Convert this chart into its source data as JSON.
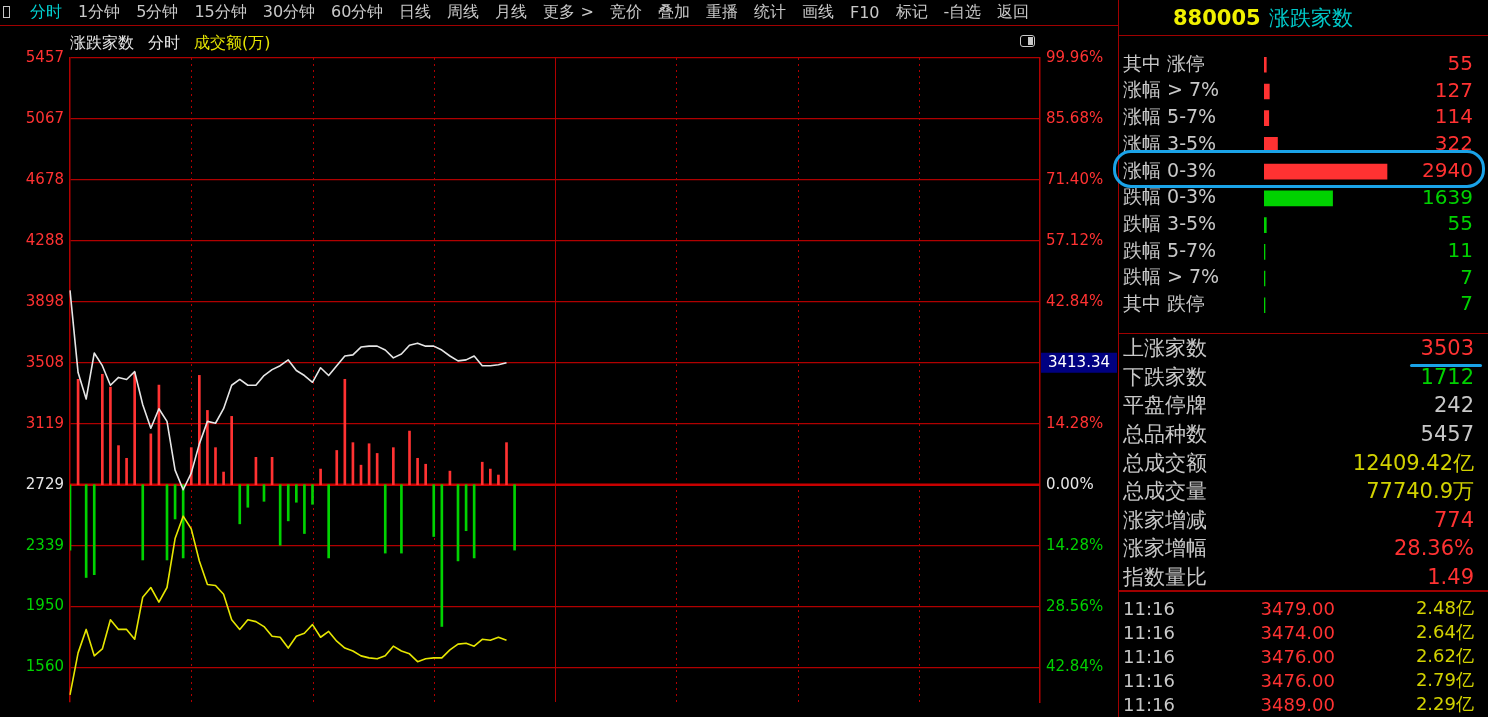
{
  "chart_data": [
    {
      "type": "other",
      "categories": [
        "分时",
        "1分钟",
        "5分钟",
        "15分钟",
        "30分钟",
        "60分钟",
        "日线",
        "周线",
        "月线",
        "更多 >",
        "竞价",
        "叠加",
        "重播",
        "统计",
        "画线",
        "F10",
        "标记",
        "-自选",
        "返回"
      ],
      "colors": [
        "#00d2d2",
        "#c8c8c8",
        "#c8c8c8",
        "#c8c8c8",
        "#c8c8c8",
        "#c8c8c8",
        "#c8c8c8",
        "#c8c8c8",
        "#c8c8c8",
        "#c8c8c8",
        "#c8c8c8",
        "#c8c8c8",
        "#c8c8c8",
        "#c8c8c8",
        "#c8c8c8",
        "#c8c8c8",
        "#c8c8c8",
        "#c8c8c8",
        "#c8c8c8"
      ]
    },
    {
      "type": "line",
      "title": "涨跌家数",
      "subtitle": "分时",
      "legend": "top left",
      "grid": true,
      "categories": [
        null,
        null,
        null,
        null,
        null,
        null,
        null,
        null,
        null,
        null,
        null,
        null,
        null,
        null,
        null,
        null,
        null,
        null,
        null,
        null,
        null,
        null,
        null,
        null,
        null,
        null,
        null,
        null,
        null,
        null,
        null,
        null,
        null,
        null,
        null,
        null,
        null,
        null,
        null,
        null,
        null,
        null,
        null,
        null,
        null,
        null,
        null,
        null,
        null,
        null,
        null,
        null,
        null,
        null,
        null,
        null,
        null,
        null,
        null,
        null,
        null,
        null,
        null,
        null,
        null,
        null,
        null,
        null,
        null,
        null,
        null,
        null,
        null,
        null,
        null,
        null,
        null,
        null,
        null,
        null,
        null,
        null,
        null,
        null,
        null,
        null,
        null,
        null,
        null,
        null,
        null,
        null,
        null,
        null,
        null,
        null,
        null,
        null,
        null,
        null,
        null,
        null,
        null,
        null,
        null,
        null,
        null,
        null,
        null,
        null,
        null,
        null,
        null,
        null,
        null,
        null,
        null,
        null,
        null,
        null,
        null
      ],
      "series": [
        {
          "color": "#e6e6e6",
          "values": [
            3971,
            3446,
            3277,
            3571,
            3490,
            3365,
            3415,
            3402,
            3452,
            3240,
            3090,
            3215,
            3134,
            2822,
            2697,
            2803,
            2990,
            3134,
            3122,
            3215,
            3365,
            3402,
            3365,
            3365,
            3427,
            3465,
            3490,
            3527,
            3459,
            3427,
            3384,
            3477,
            3427,
            3490,
            3552,
            3559,
            3609,
            3615,
            3615,
            3590,
            3540,
            3565,
            3621,
            3634,
            3615,
            3615,
            3590,
            3552,
            3521,
            3527,
            3552,
            3490,
            3490,
            3496,
            3509,
            null,
            null,
            null,
            null,
            null,
            null,
            null,
            null,
            null,
            null,
            null,
            null,
            null,
            null,
            null,
            null,
            null,
            null,
            null,
            null,
            null,
            null,
            null,
            null,
            null,
            null,
            null,
            null,
            null,
            null,
            null,
            null,
            null,
            null,
            null,
            null,
            null,
            null,
            null,
            null,
            null,
            null,
            null,
            null,
            null,
            null,
            null,
            null,
            null,
            null,
            null,
            null,
            null,
            null,
            null,
            null,
            null,
            null,
            null,
            null,
            null,
            null,
            null,
            null,
            null,
            null
          ]
        },
        {
          "name": "成交额(万)",
          "color": "#e6e600",
          "values": [
            1385,
            1654,
            1804,
            1635,
            1679,
            1866,
            1804,
            1804,
            1741,
            2010,
            2072,
            1979,
            2072,
            2385,
            2528,
            2447,
            2241,
            2091,
            2085,
            2029,
            1866,
            1804,
            1866,
            1854,
            1822,
            1760,
            1754,
            1685,
            1760,
            1779,
            1835,
            1754,
            1791,
            1729,
            1685,
            1666,
            1635,
            1622,
            1616,
            1635,
            1697,
            1666,
            1648,
            1598,
            1616,
            1622,
            1622,
            1673,
            1710,
            1716,
            1697,
            1741,
            1735,
            1754,
            1735,
            null,
            null,
            null,
            null,
            null,
            null,
            null,
            null,
            null,
            null,
            null,
            null,
            null,
            null,
            null,
            null,
            null,
            null,
            null,
            null,
            null,
            null,
            null,
            null,
            null,
            null,
            null,
            null,
            null,
            null,
            null,
            null,
            null,
            null,
            null,
            null,
            null,
            null,
            null,
            null,
            null,
            null,
            null,
            null,
            null,
            null,
            null,
            null,
            null,
            null,
            null,
            null,
            null,
            null,
            null,
            null,
            null,
            null,
            null,
            null,
            null,
            null,
            null,
            null,
            null,
            null
          ]
        },
        {
          "type": "bar",
          "values": [
            -418,
            674,
            -593,
            -575,
            706,
            624,
            250,
            169,
            718,
            -481,
            325,
            637,
            -481,
            -219,
            -468,
            237,
            699,
            475,
            237,
            81,
            437,
            -250,
            -144,
            175,
            -106,
            175,
            -387,
            -231,
            -112,
            -312,
            -125,
            100,
            -468,
            219,
            674,
            269,
            125,
            262,
            200,
            -437,
            237,
            -437,
            343,
            169,
            131,
            -331,
            -906,
            87,
            -487,
            -294,
            -468,
            144,
            100,
            62,
            269,
            -418,
            null,
            null,
            null,
            null,
            null,
            null,
            null,
            null,
            null,
            null,
            null,
            null,
            null,
            null,
            null,
            null,
            null,
            null,
            null,
            null,
            null,
            null,
            null,
            null,
            null,
            null,
            null,
            null,
            null,
            null,
            null,
            null,
            null,
            null,
            null,
            null,
            null,
            null,
            null,
            null,
            null,
            null,
            null,
            null,
            null,
            null,
            null,
            null,
            null,
            null,
            null,
            null,
            null,
            null,
            null,
            null,
            null,
            null,
            null,
            null,
            null,
            null,
            null,
            null,
            null
          ],
          "base": [
            2729,
            2729,
            2729,
            2729,
            2729,
            2729,
            2729,
            2729,
            2729,
            2729,
            2729,
            2729,
            2729,
            2729,
            2729,
            2729,
            2729,
            2729,
            2729,
            2729,
            2729,
            2729,
            2729,
            2729,
            2729,
            2729,
            2729,
            2729,
            2729,
            2729,
            2729,
            2729,
            2729,
            2729,
            2729,
            2729,
            2729,
            2729,
            2729,
            2729,
            2729,
            2729,
            2729,
            2729,
            2729,
            2729,
            2729,
            2729,
            2729,
            2729,
            2729,
            2729,
            2729,
            2729,
            2729,
            2729,
            null,
            null,
            null,
            null,
            null,
            null,
            null,
            null,
            null,
            null,
            null,
            null,
            null,
            null,
            null,
            null,
            null,
            null,
            null,
            null,
            null,
            null,
            null,
            null,
            null,
            null,
            null,
            null,
            null,
            null,
            null,
            null,
            null,
            null,
            null,
            null,
            null,
            null,
            null,
            null,
            null,
            null,
            null,
            null,
            null,
            null,
            null,
            null,
            null,
            null,
            null,
            null,
            null,
            null,
            null,
            null,
            null,
            null,
            null,
            null,
            null,
            null,
            null,
            null,
            null
          ],
          "colors": [
            "#00d200",
            "#ff3232",
            "#00d200",
            "#00d200",
            "#ff3232",
            "#ff3232",
            "#ff3232",
            "#ff3232",
            "#ff3232",
            "#00d200",
            "#ff3232",
            "#ff3232",
            "#00d200",
            "#00d200",
            "#00d200",
            "#ff3232",
            "#ff3232",
            "#ff3232",
            "#ff3232",
            "#ff3232",
            "#ff3232",
            "#00d200",
            "#00d200",
            "#ff3232",
            "#00d200",
            "#ff3232",
            "#00d200",
            "#00d200",
            "#00d200",
            "#00d200",
            "#00d200",
            "#ff3232",
            "#00d200",
            "#ff3232",
            "#ff3232",
            "#ff3232",
            "#ff3232",
            "#ff3232",
            "#ff3232",
            "#00d200",
            "#ff3232",
            "#00d200",
            "#ff3232",
            "#ff3232",
            "#ff3232",
            "#00d200",
            "#00d200",
            "#ff3232",
            "#00d200",
            "#00d200",
            "#00d200",
            "#ff3232",
            "#ff3232",
            "#ff3232",
            "#ff3232",
            "#00d200",
            null,
            null,
            null,
            null,
            null,
            null,
            null,
            null,
            null,
            null,
            null,
            null,
            null,
            null,
            null,
            null,
            null,
            null,
            null,
            null,
            null,
            null,
            null,
            null,
            null,
            null,
            null,
            null,
            null,
            null,
            null,
            null,
            null,
            null,
            null,
            null,
            null,
            null,
            null,
            null,
            null,
            null,
            null,
            null,
            null,
            null,
            null,
            null,
            null,
            null,
            null,
            null,
            null,
            null,
            null,
            null,
            null,
            null,
            null,
            null,
            null,
            null,
            null,
            null,
            null
          ]
        }
      ],
      "ylim": [
        1340,
        5457
      ],
      "yticks": [
        1560,
        1950,
        2339,
        2729,
        3119,
        3508,
        3898,
        4288,
        4678,
        5067,
        5457
      ],
      "y2lim": [
        -50.9,
        99.96
      ],
      "y2ticks": [
        {
          "value": -42.84,
          "label": "42.84%"
        },
        {
          "value": -28.56,
          "label": "28.56%"
        },
        {
          "value": -14.28,
          "label": "14.28%"
        },
        {
          "value": 0,
          "label": "0.00%"
        },
        {
          "value": 14.28,
          "label": "14.28%"
        },
        {
          "value": 28.56,
          "label": null
        },
        {
          "value": 42.84,
          "label": "42.84%"
        },
        {
          "value": 57.12,
          "label": "57.12%"
        },
        {
          "value": 71.4,
          "label": "71.40%"
        },
        {
          "value": 85.68,
          "label": "85.68%"
        },
        {
          "value": 99.96,
          "label": "99.96%"
        }
      ],
      "ref_lines": [
        {
          "axis": "y",
          "value": 2729,
          "color": "#c80000"
        }
      ],
      "annotations": [
        "3413.34"
      ]
    },
    {
      "type": "bar",
      "orientation": "horizontal",
      "title": "880005 涨跌家数",
      "data_labels": true,
      "categories": [
        "其中 涨停",
        "涨幅 > 7%",
        "涨幅 5-7%",
        "涨幅 3-5%",
        "涨幅 0-3%",
        "跌幅 0-3%",
        "跌幅 3-5%",
        "跌幅 5-7%",
        "跌幅 > 7%",
        "其中 跌停"
      ],
      "values": [
        55,
        127,
        114,
        322,
        2940,
        1639,
        55,
        11,
        7,
        7
      ],
      "colors": [
        "#ff3232",
        "#ff3232",
        "#ff3232",
        "#ff3232",
        "#ff3232",
        "#00d200",
        "#00d200",
        "#00d200",
        "#00d200",
        "#00d200"
      ]
    },
    {
      "type": "other",
      "categories": [
        "上涨家数",
        "下跌家数",
        "平盘停牌",
        "总品种数",
        "总成交额",
        "总成交量",
        "涨家增减",
        "涨家增幅",
        "指数量比"
      ],
      "value_labels": [
        "3503",
        "1712",
        "242",
        "5457",
        "12409.42亿",
        "77740.9万",
        "774",
        "28.36%",
        "1.49"
      ],
      "colors": [
        "#ff3232",
        "#00d200",
        "#c8c8c8",
        "#c8c8c8",
        "#d2d200",
        "#d2d200",
        "#ff3232",
        "#ff3232",
        "#ff3232"
      ]
    },
    {
      "type": "other",
      "annotations": [
        "11:16 3479.00 2.48亿",
        "11:16 3474.00 2.64亿",
        "11:16 3476.00 2.62亿",
        "11:16 3476.00 2.79亿",
        "11:16 3489.00 2.29亿"
      ]
    }
  ]
}
